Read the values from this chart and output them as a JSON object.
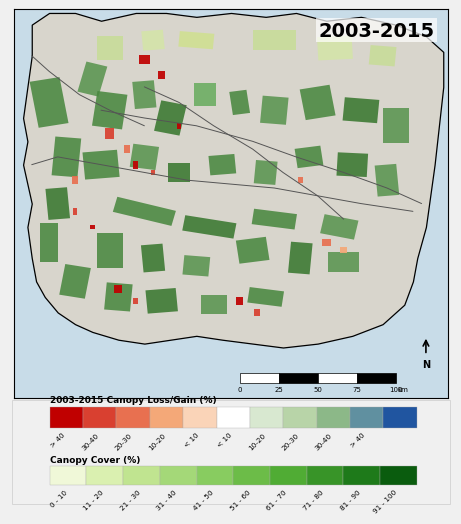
{
  "title": "2003-2015",
  "title_fontsize": 14,
  "title_fontweight": "bold",
  "map_bg": "#c8dce8",
  "land_color": "#d8d5cc",
  "outer_bg": "#f0f0f0",
  "legend_bg": "#ffffff",
  "legend_title1": "2003-2015 Canopy Loss/Gain (%)",
  "legend_title2": "Canopy Cover (%)",
  "loss_colors": [
    "#c00000",
    "#d94030",
    "#e87050",
    "#f4a878",
    "#fad4b8"
  ],
  "gain_colors": [
    "#ffffff",
    "#d8e8d0",
    "#b8d4a8",
    "#8cb888",
    "#6090a0",
    "#2055a0"
  ],
  "loss_labels": [
    "> 40",
    "30-40",
    "20-30",
    "10-20",
    "< 10"
  ],
  "gain_labels": [
    "10-20",
    "20-30",
    "30-40",
    "> 40"
  ],
  "cover_colors": [
    "#f0f8d8",
    "#daf0b0",
    "#c0e490",
    "#a4d878",
    "#88cc60",
    "#6cbc48",
    "#50ac34",
    "#389428",
    "#1e7a1a",
    "#0a5c0e"
  ],
  "cover_labels": [
    "0 - 10",
    "11 - 20",
    "21 - 30",
    "31 - 40",
    "41 - 50",
    "51 - 60",
    "61 - 70",
    "71 - 80",
    "81 - 90",
    "91 - 100"
  ],
  "scalebar_labels": [
    "0",
    "25",
    "50",
    "75",
    "100"
  ],
  "scalebar_colors": [
    "white",
    "black",
    "white",
    "black"
  ]
}
